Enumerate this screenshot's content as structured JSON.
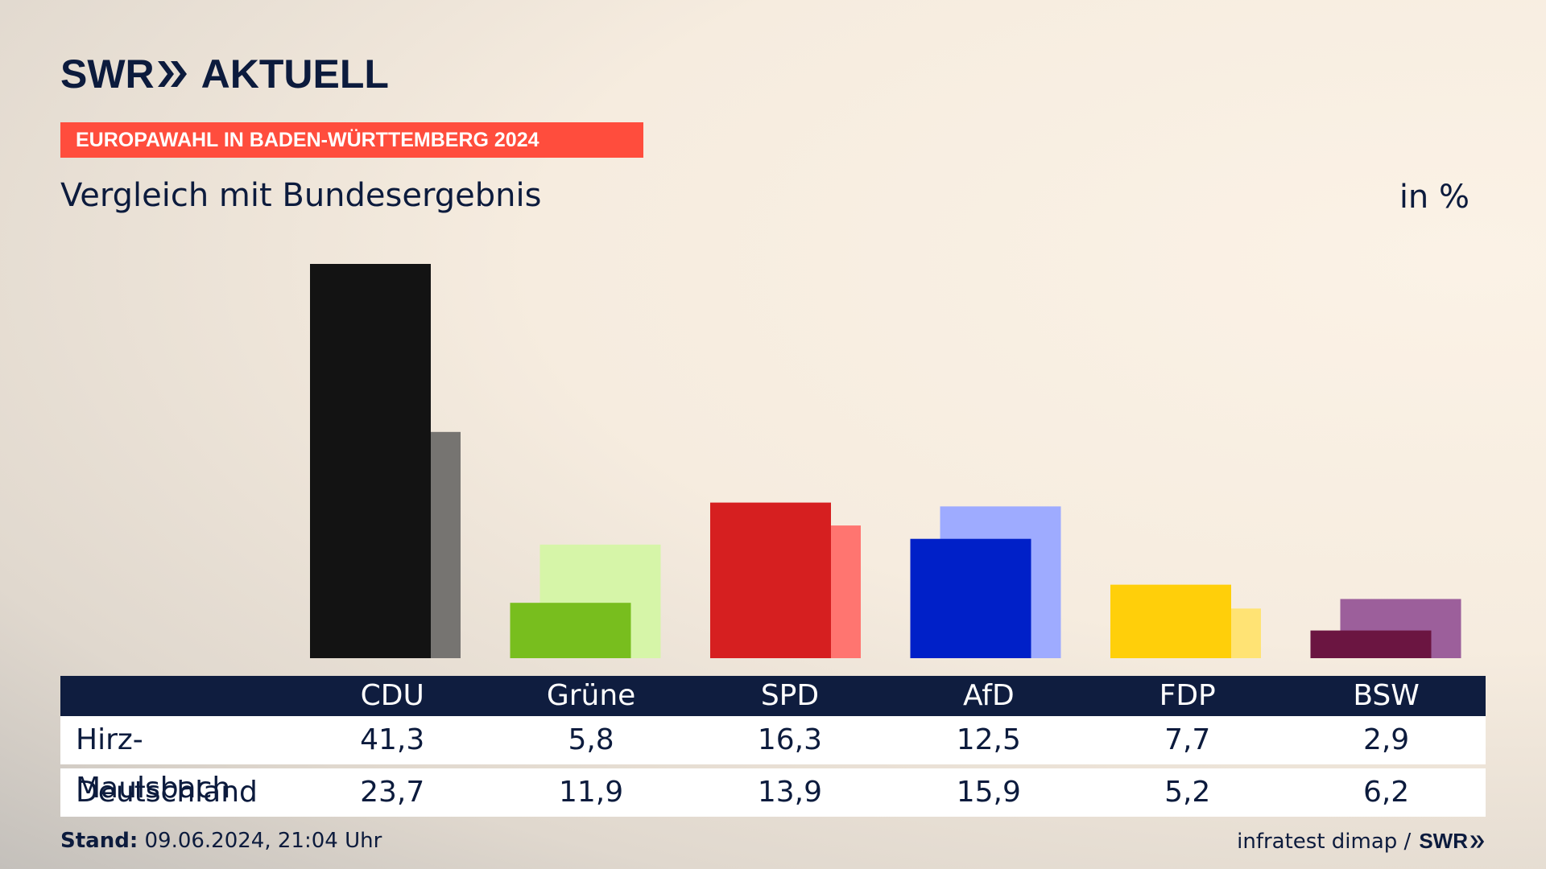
{
  "brand": {
    "swr": "SWR",
    "aktuell": "AKTUELL"
  },
  "banner": "EUROPAWAHL IN BADEN-WÜRTTEMBERG 2024",
  "subtitle": "Vergleich mit Bundesergebnis",
  "unit": "in %",
  "chart_data": {
    "type": "bar",
    "categories": [
      "CDU",
      "Grüne",
      "SPD",
      "AfD",
      "FDP",
      "BSW"
    ],
    "series": [
      {
        "name": "Hirz-Maulsbach",
        "values": [
          41.3,
          5.8,
          16.3,
          12.5,
          7.7,
          2.9
        ],
        "colors": [
          "#131313",
          "#78be1e",
          "#d61f20",
          "#0020c8",
          "#ffcf0a",
          "#6b1541"
        ]
      },
      {
        "name": "Deutschland",
        "values": [
          23.7,
          11.9,
          13.9,
          15.9,
          5.2,
          6.2
        ],
        "colors": [
          "#767471",
          "#d6f5a8",
          "#ff7570",
          "#9eabff",
          "#ffe374",
          "#9c5f9b"
        ]
      }
    ],
    "ylim": [
      0,
      41.3
    ]
  },
  "table": {
    "headers": [
      "CDU",
      "Grüne",
      "SPD",
      "AfD",
      "FDP",
      "BSW"
    ],
    "rows": [
      {
        "label": "Hirz-Maulsbach",
        "values": [
          "41,3",
          "5,8",
          "16,3",
          "12,5",
          "7,7",
          "2,9"
        ]
      },
      {
        "label": "Deutschland",
        "values": [
          "23,7",
          "11,9",
          "13,9",
          "15,9",
          "5,2",
          "6,2"
        ]
      }
    ]
  },
  "footer": {
    "stand_label": "Stand:",
    "stand_value": "09.06.2024, 21:04 Uhr",
    "source": "infratest dimap /",
    "swr": "SWR"
  }
}
